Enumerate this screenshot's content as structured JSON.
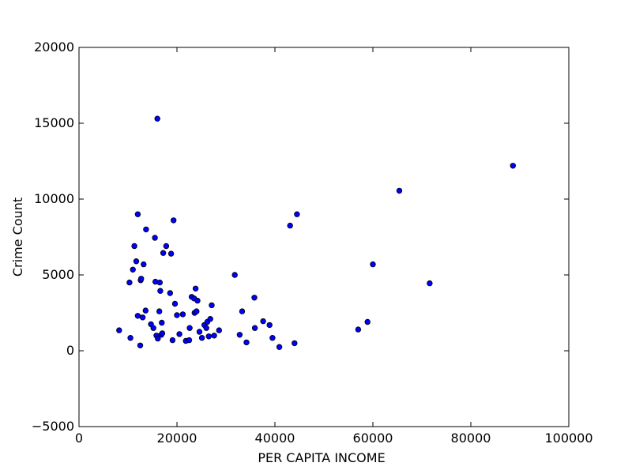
{
  "chart_data": {
    "type": "scatter",
    "title": "",
    "xlabel": "PER CAPITA INCOME",
    "ylabel": "Crime Count",
    "xlim": [
      0,
      100000
    ],
    "ylim": [
      -5000,
      20000
    ],
    "xticks": [
      0,
      20000,
      40000,
      60000,
      80000,
      100000
    ],
    "yticks": [
      -5000,
      0,
      5000,
      10000,
      15000,
      20000
    ],
    "grid": false,
    "legend": "none",
    "marker_color": "#0000ff",
    "points": [
      [
        8200,
        1350
      ],
      [
        10300,
        4500
      ],
      [
        10500,
        850
      ],
      [
        11000,
        5350
      ],
      [
        11300,
        6900
      ],
      [
        11700,
        5900
      ],
      [
        12000,
        2300
      ],
      [
        12000,
        9000
      ],
      [
        12500,
        350
      ],
      [
        12600,
        4650
      ],
      [
        12700,
        4750
      ],
      [
        13000,
        2200
      ],
      [
        13200,
        5700
      ],
      [
        13600,
        2650
      ],
      [
        13700,
        8000
      ],
      [
        14700,
        1750
      ],
      [
        15200,
        1500
      ],
      [
        15500,
        7450
      ],
      [
        15600,
        4550
      ],
      [
        15800,
        1000
      ],
      [
        16000,
        15300
      ],
      [
        16100,
        800
      ],
      [
        16400,
        2600
      ],
      [
        16500,
        4500
      ],
      [
        16600,
        3950
      ],
      [
        16800,
        1050
      ],
      [
        16900,
        1850
      ],
      [
        17000,
        1150
      ],
      [
        17200,
        6450
      ],
      [
        17800,
        6900
      ],
      [
        18600,
        3800
      ],
      [
        18800,
        6400
      ],
      [
        19100,
        700
      ],
      [
        19300,
        8600
      ],
      [
        19600,
        3100
      ],
      [
        20000,
        2350
      ],
      [
        20500,
        1100
      ],
      [
        21200,
        2400
      ],
      [
        21800,
        650
      ],
      [
        22500,
        700
      ],
      [
        22600,
        1500
      ],
      [
        23000,
        3550
      ],
      [
        23500,
        3450
      ],
      [
        23600,
        2500
      ],
      [
        23800,
        4100
      ],
      [
        24000,
        2600
      ],
      [
        24200,
        3300
      ],
      [
        24600,
        1250
      ],
      [
        25100,
        850
      ],
      [
        25600,
        1700
      ],
      [
        26000,
        1500
      ],
      [
        26200,
        1900
      ],
      [
        26500,
        950
      ],
      [
        26800,
        2100
      ],
      [
        27100,
        3000
      ],
      [
        27600,
        1000
      ],
      [
        28600,
        1350
      ],
      [
        31800,
        5000
      ],
      [
        32800,
        1050
      ],
      [
        33300,
        2600
      ],
      [
        34200,
        550
      ],
      [
        35800,
        3500
      ],
      [
        35900,
        1500
      ],
      [
        37600,
        1950
      ],
      [
        38900,
        1700
      ],
      [
        39500,
        850
      ],
      [
        40900,
        250
      ],
      [
        43100,
        8250
      ],
      [
        44000,
        500
      ],
      [
        44500,
        9000
      ],
      [
        57000,
        1400
      ],
      [
        58900,
        1900
      ],
      [
        60000,
        5700
      ],
      [
        65400,
        10550
      ],
      [
        71600,
        4450
      ],
      [
        88600,
        12200
      ]
    ]
  },
  "text": {
    "xticks": [
      "0",
      "20000",
      "40000",
      "60000",
      "80000",
      "100000"
    ],
    "yticks": [
      "−5000",
      "0",
      "5000",
      "10000",
      "15000",
      "20000"
    ]
  }
}
